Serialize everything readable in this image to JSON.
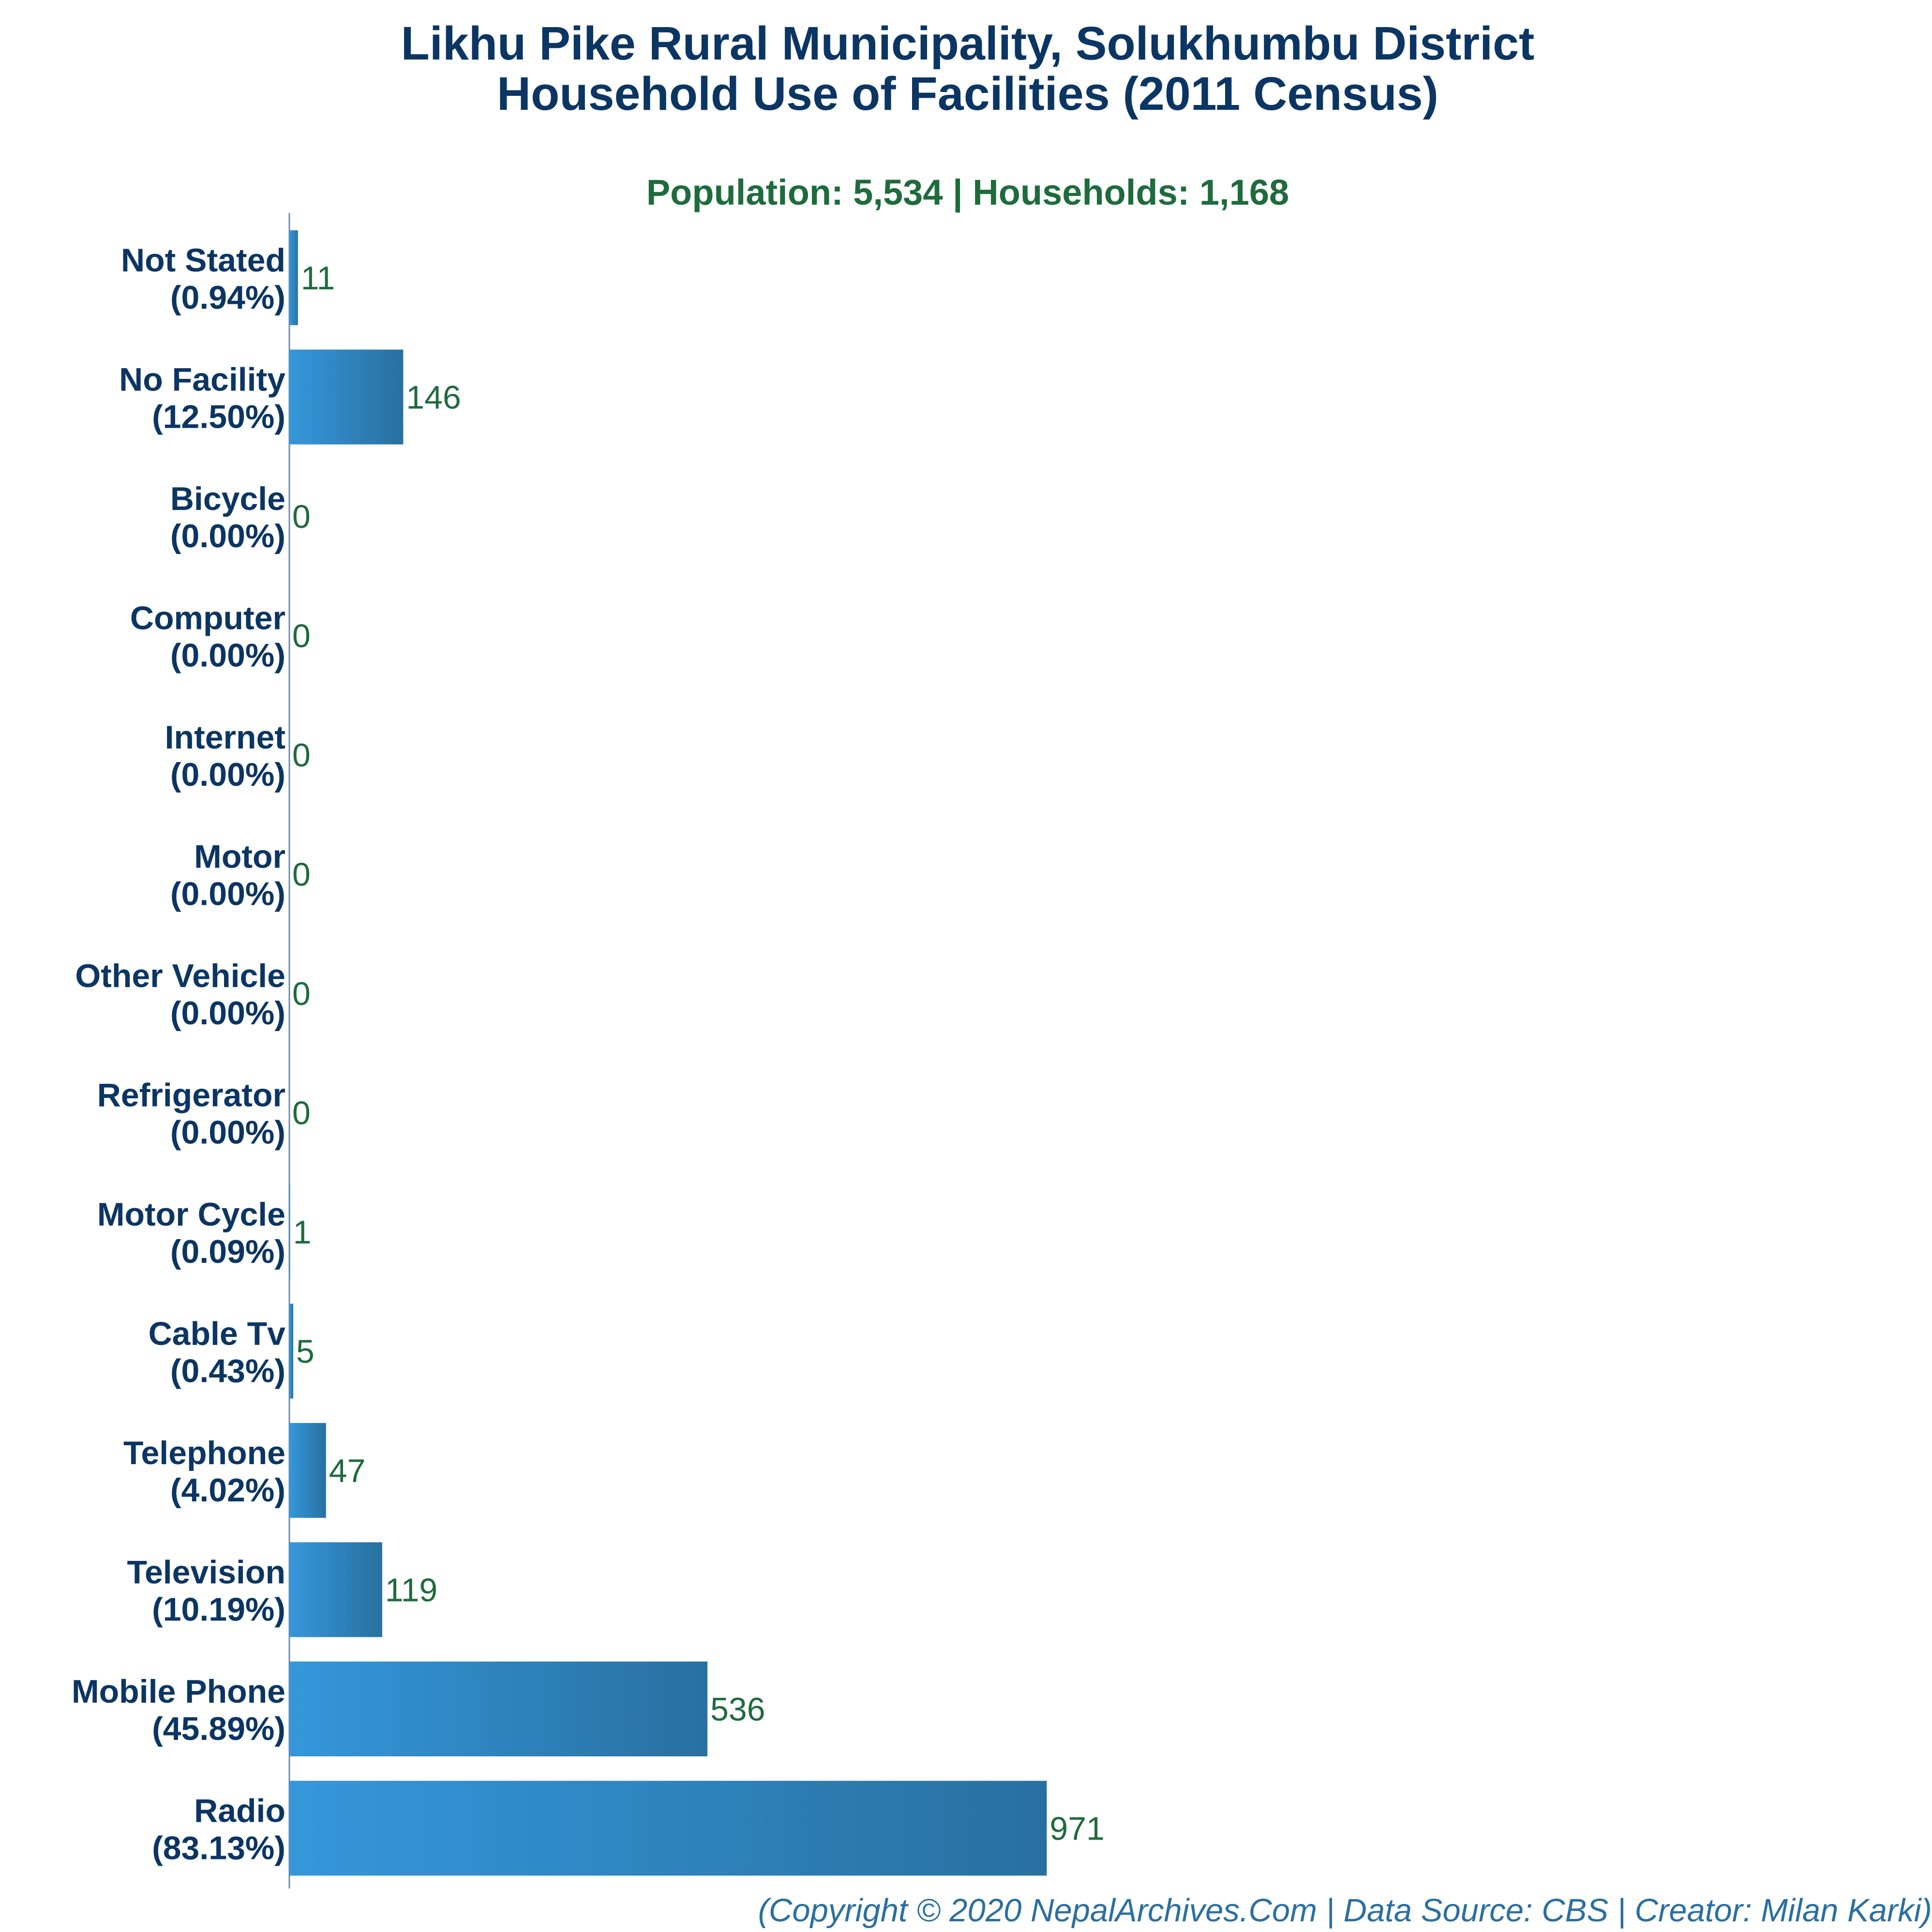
{
  "header": {
    "title_line1": "Likhu Pike Rural Municipality, Solukhumbu District",
    "title_line2": "Household Use of Facilities (2011 Census)",
    "subtitle": "Population: 5,534 | Households: 1,168"
  },
  "footer": {
    "credit": "(Copyright © 2020 NepalArchives.Com | Data Source: CBS | Creator: Milan Karki)"
  },
  "colors": {
    "bar_start": "#3597db",
    "bar_end": "#2870a1",
    "category_label": "#0b3563",
    "value_label": "#1e6b3c",
    "axis": "#6f8ea8"
  },
  "chart_data": {
    "type": "bar",
    "orientation": "horizontal",
    "categories": [
      "Not Stated",
      "No Facility",
      "Bicycle",
      "Computer",
      "Internet",
      "Motor",
      "Other Vehicle",
      "Refrigerator",
      "Motor Cycle",
      "Cable Tv",
      "Telephone",
      "Television",
      "Mobile Phone",
      "Radio"
    ],
    "percent_labels": [
      "(0.94%)",
      "(12.50%)",
      "(0.00%)",
      "(0.00%)",
      "(0.00%)",
      "(0.00%)",
      "(0.00%)",
      "(0.00%)",
      "(0.09%)",
      "(0.43%)",
      "(4.02%)",
      "(10.19%)",
      "(45.89%)",
      "(83.13%)"
    ],
    "values": [
      11,
      146,
      0,
      0,
      0,
      0,
      0,
      0,
      1,
      5,
      47,
      119,
      536,
      971
    ],
    "xlim": [
      0,
      1070
    ],
    "grid": false,
    "legend": "none"
  }
}
